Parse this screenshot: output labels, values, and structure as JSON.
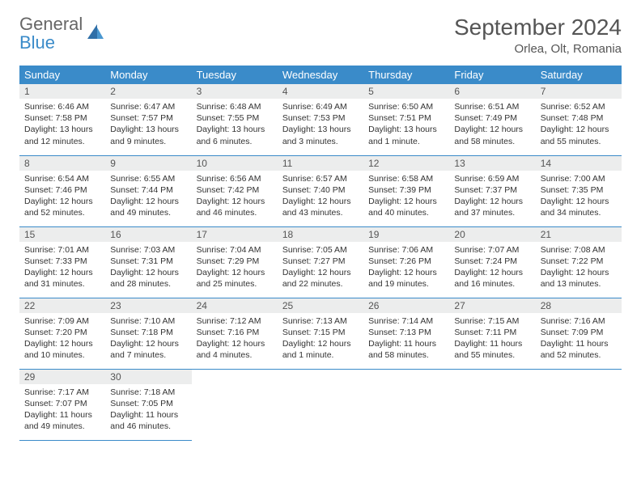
{
  "brand": {
    "general": "General",
    "blue": "Blue"
  },
  "title": "September 2024",
  "location": "Orlea, Olt, Romania",
  "colors": {
    "header_bg": "#3a8bc9",
    "header_fg": "#ffffff",
    "daynum_bg": "#eceded",
    "rule": "#3a8bc9",
    "text": "#333333",
    "title_color": "#555555"
  },
  "weekdays": [
    "Sunday",
    "Monday",
    "Tuesday",
    "Wednesday",
    "Thursday",
    "Friday",
    "Saturday"
  ],
  "weeks": [
    [
      {
        "n": 1,
        "sr": "6:46 AM",
        "ss": "7:58 PM",
        "dl": "13 hours and 12 minutes."
      },
      {
        "n": 2,
        "sr": "6:47 AM",
        "ss": "7:57 PM",
        "dl": "13 hours and 9 minutes."
      },
      {
        "n": 3,
        "sr": "6:48 AM",
        "ss": "7:55 PM",
        "dl": "13 hours and 6 minutes."
      },
      {
        "n": 4,
        "sr": "6:49 AM",
        "ss": "7:53 PM",
        "dl": "13 hours and 3 minutes."
      },
      {
        "n": 5,
        "sr": "6:50 AM",
        "ss": "7:51 PM",
        "dl": "13 hours and 1 minute."
      },
      {
        "n": 6,
        "sr": "6:51 AM",
        "ss": "7:49 PM",
        "dl": "12 hours and 58 minutes."
      },
      {
        "n": 7,
        "sr": "6:52 AM",
        "ss": "7:48 PM",
        "dl": "12 hours and 55 minutes."
      }
    ],
    [
      {
        "n": 8,
        "sr": "6:54 AM",
        "ss": "7:46 PM",
        "dl": "12 hours and 52 minutes."
      },
      {
        "n": 9,
        "sr": "6:55 AM",
        "ss": "7:44 PM",
        "dl": "12 hours and 49 minutes."
      },
      {
        "n": 10,
        "sr": "6:56 AM",
        "ss": "7:42 PM",
        "dl": "12 hours and 46 minutes."
      },
      {
        "n": 11,
        "sr": "6:57 AM",
        "ss": "7:40 PM",
        "dl": "12 hours and 43 minutes."
      },
      {
        "n": 12,
        "sr": "6:58 AM",
        "ss": "7:39 PM",
        "dl": "12 hours and 40 minutes."
      },
      {
        "n": 13,
        "sr": "6:59 AM",
        "ss": "7:37 PM",
        "dl": "12 hours and 37 minutes."
      },
      {
        "n": 14,
        "sr": "7:00 AM",
        "ss": "7:35 PM",
        "dl": "12 hours and 34 minutes."
      }
    ],
    [
      {
        "n": 15,
        "sr": "7:01 AM",
        "ss": "7:33 PM",
        "dl": "12 hours and 31 minutes."
      },
      {
        "n": 16,
        "sr": "7:03 AM",
        "ss": "7:31 PM",
        "dl": "12 hours and 28 minutes."
      },
      {
        "n": 17,
        "sr": "7:04 AM",
        "ss": "7:29 PM",
        "dl": "12 hours and 25 minutes."
      },
      {
        "n": 18,
        "sr": "7:05 AM",
        "ss": "7:27 PM",
        "dl": "12 hours and 22 minutes."
      },
      {
        "n": 19,
        "sr": "7:06 AM",
        "ss": "7:26 PM",
        "dl": "12 hours and 19 minutes."
      },
      {
        "n": 20,
        "sr": "7:07 AM",
        "ss": "7:24 PM",
        "dl": "12 hours and 16 minutes."
      },
      {
        "n": 21,
        "sr": "7:08 AM",
        "ss": "7:22 PM",
        "dl": "12 hours and 13 minutes."
      }
    ],
    [
      {
        "n": 22,
        "sr": "7:09 AM",
        "ss": "7:20 PM",
        "dl": "12 hours and 10 minutes."
      },
      {
        "n": 23,
        "sr": "7:10 AM",
        "ss": "7:18 PM",
        "dl": "12 hours and 7 minutes."
      },
      {
        "n": 24,
        "sr": "7:12 AM",
        "ss": "7:16 PM",
        "dl": "12 hours and 4 minutes."
      },
      {
        "n": 25,
        "sr": "7:13 AM",
        "ss": "7:15 PM",
        "dl": "12 hours and 1 minute."
      },
      {
        "n": 26,
        "sr": "7:14 AM",
        "ss": "7:13 PM",
        "dl": "11 hours and 58 minutes."
      },
      {
        "n": 27,
        "sr": "7:15 AM",
        "ss": "7:11 PM",
        "dl": "11 hours and 55 minutes."
      },
      {
        "n": 28,
        "sr": "7:16 AM",
        "ss": "7:09 PM",
        "dl": "11 hours and 52 minutes."
      }
    ],
    [
      {
        "n": 29,
        "sr": "7:17 AM",
        "ss": "7:07 PM",
        "dl": "11 hours and 49 minutes."
      },
      {
        "n": 30,
        "sr": "7:18 AM",
        "ss": "7:05 PM",
        "dl": "11 hours and 46 minutes."
      },
      null,
      null,
      null,
      null,
      null
    ]
  ],
  "labels": {
    "sunrise": "Sunrise:",
    "sunset": "Sunset:",
    "daylight": "Daylight:"
  }
}
